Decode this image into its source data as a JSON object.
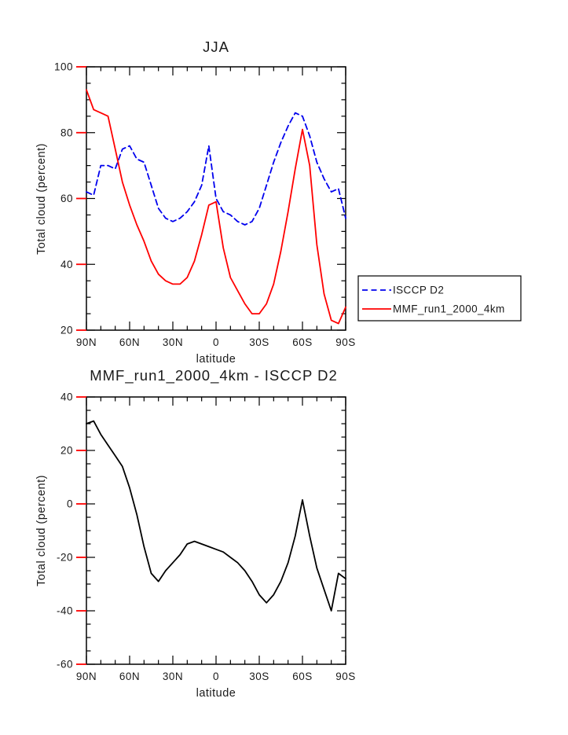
{
  "page": {
    "background": "#ffffff"
  },
  "colors": {
    "isccp_blue": "#0000ee",
    "mmf_red": "#ff0000",
    "diff_black": "#000000",
    "outer_tick_red": "#ff0000"
  },
  "chart_data": [
    {
      "type": "line",
      "title": "JJA",
      "xlabel": "latitude",
      "ylabel": "Total cloud (percent)",
      "xlim": [
        90,
        -90
      ],
      "ylim": [
        20,
        100
      ],
      "xticks": [
        {
          "v": 90,
          "label": "90N"
        },
        {
          "v": 60,
          "label": "60N"
        },
        {
          "v": 30,
          "label": "30N"
        },
        {
          "v": 0,
          "label": "0"
        },
        {
          "v": -30,
          "label": "30S"
        },
        {
          "v": -60,
          "label": "60S"
        },
        {
          "v": -90,
          "label": "90S"
        }
      ],
      "x_minor_step": 10,
      "yticks": [
        20,
        40,
        60,
        80,
        100
      ],
      "y_minor_step": 5,
      "grid": false,
      "legend_position": "right-outside",
      "x": [
        90,
        85,
        80,
        75,
        70,
        65,
        60,
        55,
        50,
        45,
        40,
        35,
        30,
        25,
        20,
        15,
        10,
        5,
        0,
        -5,
        -10,
        -15,
        -20,
        -25,
        -30,
        -35,
        -40,
        -45,
        -50,
        -55,
        -60,
        -65,
        -70,
        -75,
        -80,
        -85,
        -90
      ],
      "series": [
        {
          "name": "ISCCP D2",
          "color": "#0000ee",
          "dash": "7,4.5",
          "values": [
            62,
            61,
            70,
            70,
            69,
            75,
            76,
            72,
            71,
            64,
            57,
            54,
            53,
            54,
            56,
            59,
            64,
            76,
            60,
            56,
            55,
            53,
            52,
            53,
            57,
            64,
            71,
            77,
            82,
            86,
            85,
            79,
            71,
            66,
            62,
            63,
            54
          ]
        },
        {
          "name": "MMF_run1_2000_4km",
          "color": "#ff0000",
          "dash": null,
          "values": [
            93,
            87,
            86,
            85,
            75,
            65,
            58,
            52,
            47,
            41,
            37,
            35,
            34,
            34,
            36,
            41,
            49,
            58,
            59,
            45,
            36,
            32,
            28,
            25,
            25,
            28,
            34,
            44,
            56,
            69,
            81,
            70,
            46,
            31,
            23,
            22,
            27
          ]
        }
      ]
    },
    {
      "type": "line",
      "title": "MMF_run1_2000_4km - ISCCP D2",
      "xlabel": "latitude",
      "ylabel": "Total cloud (percent)",
      "xlim": [
        90,
        -90
      ],
      "ylim": [
        -60,
        40
      ],
      "xticks": [
        {
          "v": 90,
          "label": "90N"
        },
        {
          "v": 60,
          "label": "60N"
        },
        {
          "v": 30,
          "label": "30N"
        },
        {
          "v": 0,
          "label": "0"
        },
        {
          "v": -30,
          "label": "30S"
        },
        {
          "v": -60,
          "label": "60S"
        },
        {
          "v": -90,
          "label": "90S"
        }
      ],
      "x_minor_step": 10,
      "yticks": [
        -60,
        -40,
        -20,
        0,
        20,
        40
      ],
      "y_minor_step": 5,
      "grid": false,
      "legend_position": "none",
      "x": [
        90,
        85,
        80,
        75,
        70,
        65,
        60,
        55,
        50,
        45,
        40,
        35,
        30,
        25,
        20,
        15,
        10,
        5,
        0,
        -5,
        -10,
        -15,
        -20,
        -25,
        -30,
        -35,
        -40,
        -45,
        -50,
        -55,
        -60,
        -65,
        -70,
        -75,
        -80,
        -85,
        -90
      ],
      "series": [
        {
          "name": "MMF_run1_2000_4km minus ISCCP D2",
          "color": "#000000",
          "dash": null,
          "values": [
            30,
            31,
            26,
            22,
            18,
            14,
            6,
            -4,
            -16,
            -26,
            -29,
            -25,
            -22,
            -19,
            -15,
            -14,
            -15,
            -16,
            -17,
            -18,
            -20,
            -22,
            -25,
            -29,
            -34,
            -37,
            -34,
            -29,
            -22,
            -12,
            1.5,
            -12,
            -24,
            -32,
            -40,
            -26,
            -28
          ]
        }
      ]
    }
  ],
  "legend": {
    "entries": [
      {
        "label": "ISCCP D2"
      },
      {
        "label": "MMF_run1_2000_4km"
      }
    ]
  }
}
